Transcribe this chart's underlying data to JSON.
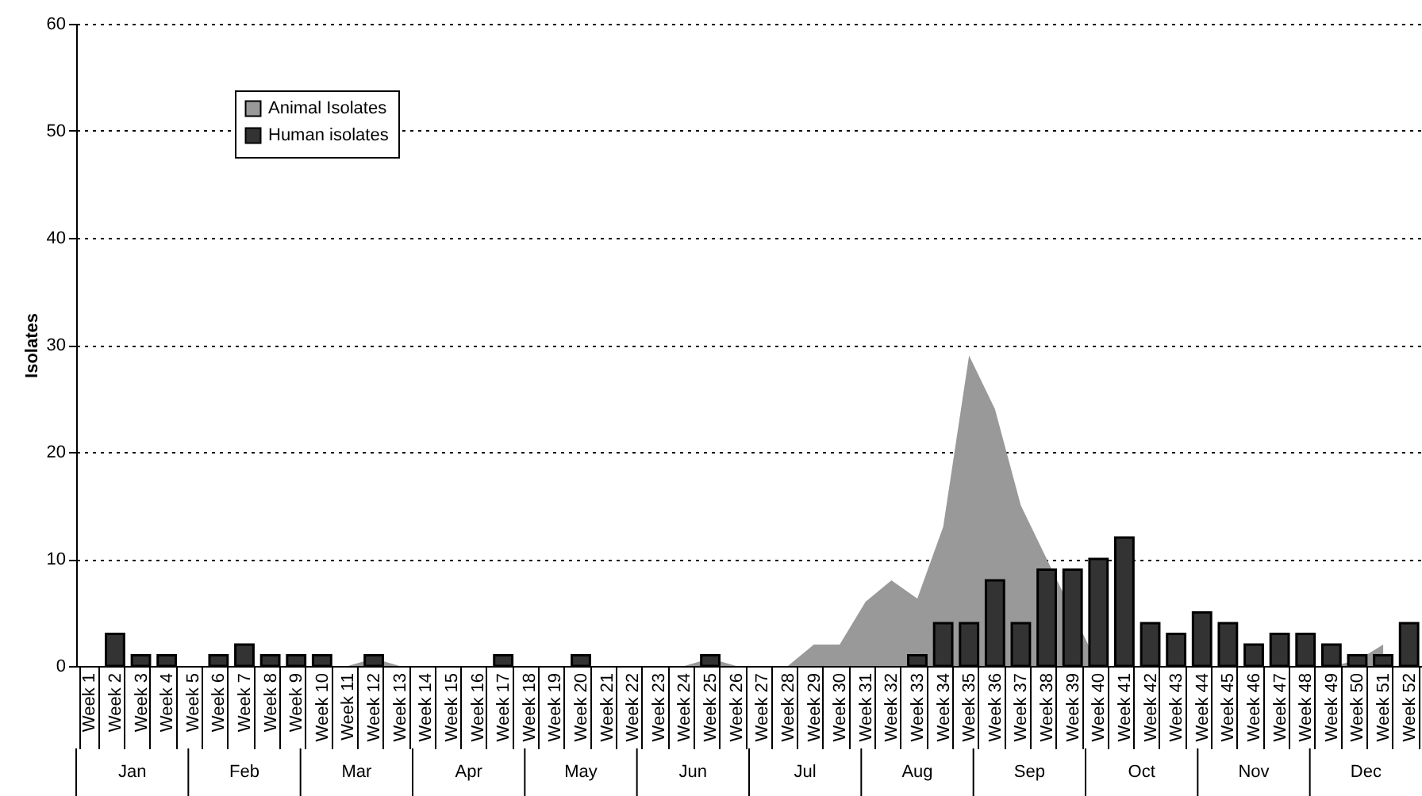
{
  "chart_data": {
    "type": "bar",
    "ylabel": "Isolates",
    "categories": [
      "Week 1",
      "Week 2",
      "Week 3",
      "Week 4",
      "Week 5",
      "Week 6",
      "Week 7",
      "Week 8",
      "Week 9",
      "Week 10",
      "Week 11",
      "Week 12",
      "Week 13",
      "Week 14",
      "Week 15",
      "Week 16",
      "Week 17",
      "Week 18",
      "Week 19",
      "Week 20",
      "Week 21",
      "Week 22",
      "Week 23",
      "Week 24",
      "Week 25",
      "Week 26",
      "Week 27",
      "Week 28",
      "Week 29",
      "Week 30",
      "Week 31",
      "Week 32",
      "Week 33",
      "Week 34",
      "Week 35",
      "Week 36",
      "Week 37",
      "Week 38",
      "Week 39",
      "Week 40",
      "Week 41",
      "Week 42",
      "Week 43",
      "Week 44",
      "Week 45",
      "Week 46",
      "Week 47",
      "Week 48",
      "Week 49",
      "Week 50",
      "Week 51",
      "Week 52"
    ],
    "series": [
      {
        "name": "Animal Isolates",
        "type": "area",
        "color": "#999999",
        "values": [
          0,
          0,
          0,
          0,
          0,
          0,
          0,
          0,
          0,
          0,
          0,
          0.7,
          0,
          0,
          0,
          0,
          0,
          0,
          0,
          0,
          0,
          0,
          0,
          0,
          0.7,
          0,
          0,
          0,
          2,
          2,
          6,
          8,
          6.3,
          13,
          29,
          24,
          15,
          null,
          null,
          0,
          null,
          0,
          0,
          0,
          0,
          0,
          0,
          0,
          0,
          0.5,
          2,
          null
        ]
      },
      {
        "name": "Human isolates",
        "color": "#333333",
        "values": [
          null,
          3,
          1,
          1,
          null,
          1,
          2,
          1,
          1,
          1,
          null,
          1,
          null,
          null,
          null,
          null,
          1,
          null,
          null,
          1,
          null,
          null,
          null,
          null,
          1,
          null,
          null,
          null,
          null,
          null,
          null,
          null,
          1,
          4,
          4,
          8,
          4,
          9,
          9,
          10,
          12,
          4,
          3,
          5,
          4,
          2,
          3,
          3,
          2,
          1,
          1,
          4
        ]
      }
    ],
    "ylim": [
      0,
      60
    ],
    "yticks": [
      0,
      10,
      20,
      30,
      40,
      50,
      60
    ],
    "grid": "y",
    "legend": "top left",
    "annotations": [
      "Jan",
      "Feb",
      "Mar",
      "Apr",
      "May",
      "Jun",
      "Jul",
      "Aug",
      "Sep",
      "Oct",
      "Nov",
      "Dec"
    ]
  }
}
